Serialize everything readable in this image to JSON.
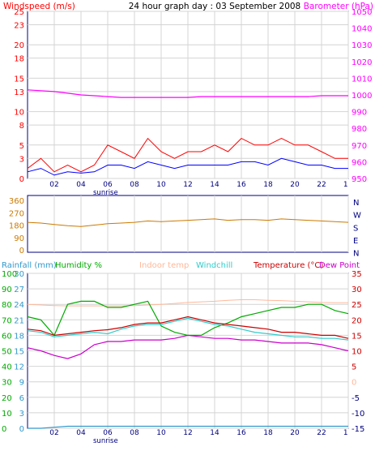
{
  "header": {
    "windspeed_label": "Windspeed (m/s)",
    "title": "24 hour graph day : 03 September 2008",
    "barometer_label": "Barometer (hPa)"
  },
  "legend": {
    "rainfall": "Rainfall (mm)",
    "humidity": "Humidity %",
    "indoor_temp": "Indoor temp",
    "windchill": "Windchill",
    "temperature": "Temperature (°C)",
    "dew_point": "Dew Point"
  },
  "sunrise_label": "sunrise",
  "x_ticks": [
    "02",
    "04",
    "06",
    "08",
    "10",
    "12",
    "14",
    "16",
    "18",
    "20",
    "22",
    "1"
  ],
  "colors": {
    "wind": "#ff0000",
    "avg_wind": "#0000ff",
    "barometer": "#ff00ff",
    "direction": "#cc7a00",
    "rainfall": "#3399cc",
    "humidity": "#00aa00",
    "indoor_temp": "#ffb899",
    "windchill": "#33cccc",
    "temperature": "#cc0000",
    "dew_point": "#cc00cc",
    "grid": "#d4d4d4",
    "frame": "#000080"
  },
  "chart_data": [
    {
      "type": "line",
      "title": "24 hour graph day : 03 September 2008",
      "ylabel": "Windspeed (m/s)",
      "ylabel_right": "Barometer (hPa)",
      "ylim": [
        0,
        25
      ],
      "y_ticks": [
        0,
        3,
        5,
        8,
        10,
        13,
        15,
        18,
        20,
        23,
        25
      ],
      "y2lim": [
        950,
        1050
      ],
      "y2_ticks": [
        950,
        960,
        970,
        980,
        990,
        1000,
        1010,
        1020,
        1030,
        1040,
        1050
      ],
      "x": [
        0,
        1,
        2,
        3,
        4,
        5,
        6,
        7,
        8,
        9,
        10,
        11,
        12,
        13,
        14,
        15,
        16,
        17,
        18,
        19,
        20,
        21,
        22,
        23,
        24
      ],
      "series": [
        {
          "name": "Windspeed",
          "values": [
            1.5,
            3,
            1,
            2,
            1,
            2,
            5,
            4,
            3,
            6,
            4,
            3,
            4,
            4,
            5,
            4,
            6,
            5,
            5,
            6,
            5,
            5,
            4,
            3,
            3
          ]
        },
        {
          "name": "Average",
          "values": [
            1,
            1.5,
            0.5,
            1,
            0.8,
            1,
            2,
            2,
            1.5,
            2.5,
            2,
            1.5,
            2,
            2,
            2,
            2,
            2.5,
            2.5,
            2,
            3,
            2.5,
            2,
            2,
            1.5,
            1.5
          ]
        },
        {
          "name": "Barometer",
          "values": [
            1003,
            1002.5,
            1002,
            1001,
            1000,
            999.5,
            999,
            998.5,
            998.5,
            998.5,
            998.5,
            998.5,
            998.5,
            999,
            999,
            999,
            999,
            999,
            999,
            999,
            999,
            999,
            999.5,
            999.5,
            999.5
          ]
        }
      ]
    },
    {
      "type": "line",
      "y_ticks": [
        0,
        90,
        180,
        270,
        360
      ],
      "y_ticks_right": [
        "N",
        "W",
        "S",
        "E",
        "N"
      ],
      "ylim": [
        0,
        360
      ],
      "x": [
        0,
        1,
        2,
        3,
        4,
        5,
        6,
        7,
        8,
        9,
        10,
        11,
        12,
        13,
        14,
        15,
        16,
        17,
        18,
        19,
        20,
        21,
        22,
        23,
        24
      ],
      "series": [
        {
          "name": "Wind direction",
          "values": [
            200,
            195,
            185,
            175,
            170,
            180,
            190,
            195,
            200,
            210,
            205,
            210,
            215,
            220,
            225,
            215,
            220,
            220,
            215,
            225,
            220,
            215,
            210,
            205,
            200
          ]
        }
      ]
    },
    {
      "type": "line",
      "y_ticks_rainfall": [
        0,
        3,
        6,
        9,
        12,
        15,
        18,
        21,
        24,
        27,
        30
      ],
      "y_ticks_humidity": [
        0,
        10,
        20,
        30,
        40,
        50,
        60,
        70,
        80,
        90,
        100
      ],
      "y_ticks_temp": [
        -15,
        -10,
        -5,
        0,
        5,
        10,
        15,
        20,
        25,
        30,
        35
      ],
      "temp_lim": [
        -15,
        35
      ],
      "x": [
        0,
        1,
        2,
        3,
        4,
        5,
        6,
        7,
        8,
        9,
        10,
        11,
        12,
        13,
        14,
        15,
        16,
        17,
        18,
        19,
        20,
        21,
        22,
        23,
        24
      ],
      "series": [
        {
          "name": "Indoor temp",
          "values": [
            25,
            24.8,
            24.6,
            24.5,
            24.5,
            24.5,
            24.5,
            24.5,
            24.6,
            24.8,
            25,
            25.3,
            25.6,
            25.8,
            26,
            26.3,
            26.5,
            26.5,
            26.3,
            26.2,
            26,
            25.8,
            25.6,
            25.5,
            25.5
          ]
        },
        {
          "name": "Humidity",
          "values": [
            72,
            70,
            60,
            80,
            82,
            82,
            78,
            78,
            80,
            82,
            66,
            62,
            60,
            60,
            65,
            68,
            72,
            74,
            76,
            78,
            78,
            80,
            80,
            76,
            74
          ]
        },
        {
          "name": "Temperature",
          "values": [
            17,
            16.5,
            15,
            15.5,
            16,
            16.5,
            16.8,
            17.5,
            18.5,
            19,
            19,
            20,
            21,
            20,
            19,
            18.5,
            18,
            17.5,
            17,
            16,
            16,
            15.5,
            15,
            15,
            14
          ]
        },
        {
          "name": "Windchill",
          "values": [
            16.5,
            16,
            14.5,
            15,
            15.5,
            16,
            15.5,
            17,
            18,
            18.5,
            18.5,
            19.5,
            20.5,
            19.5,
            18.5,
            18,
            17,
            16,
            15.5,
            15,
            14.5,
            14.5,
            14,
            14,
            13.5
          ]
        },
        {
          "name": "Dew Point",
          "values": [
            11,
            10,
            8.5,
            7.5,
            9,
            12,
            13,
            13,
            13.5,
            13.5,
            13.5,
            14,
            15,
            14.5,
            14,
            14,
            13.5,
            13.5,
            13,
            12.5,
            12.5,
            12.5,
            12,
            11,
            10
          ]
        },
        {
          "name": "Rainfall",
          "values": [
            0,
            0,
            0.2,
            0.4,
            0.4,
            0.4,
            0.4,
            0.4,
            0.4,
            0.4,
            0.4,
            0.4,
            0.4,
            0.4,
            0.4,
            0.4,
            0.4,
            0.4,
            0.4,
            0.4,
            0.4,
            0.4,
            0.4,
            0.4,
            0.4
          ]
        }
      ]
    }
  ]
}
